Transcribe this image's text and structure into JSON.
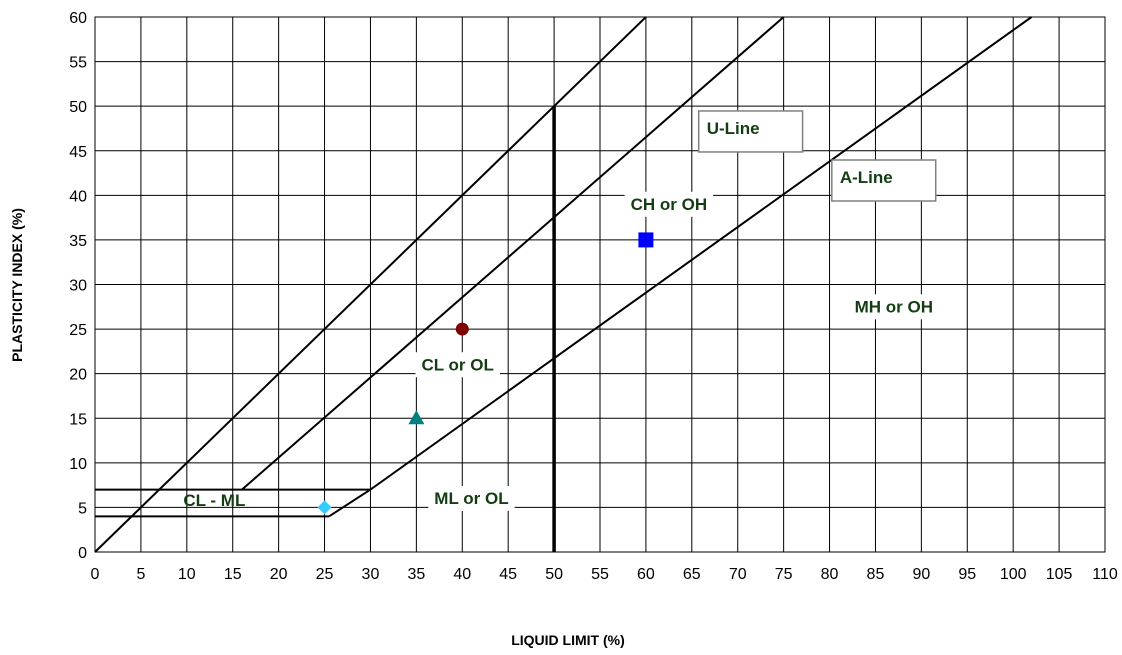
{
  "chart_data": {
    "type": "scatter",
    "title": "",
    "xlabel": "LIQUID LIMIT (%)",
    "ylabel": "PLASTICITY INDEX (%)",
    "xlim": [
      0,
      110
    ],
    "ylim": [
      0,
      60
    ],
    "x_ticks": [
      0,
      5,
      10,
      15,
      20,
      25,
      30,
      35,
      40,
      45,
      50,
      55,
      60,
      65,
      70,
      75,
      80,
      85,
      90,
      95,
      100,
      105,
      110
    ],
    "y_ticks": [
      0,
      5,
      10,
      15,
      20,
      25,
      30,
      35,
      40,
      45,
      50,
      55,
      60
    ],
    "grid": true,
    "lines": [
      {
        "points": [
          [
            0,
            0
          ],
          [
            60,
            60
          ]
        ]
      },
      {
        "points": [
          [
            16,
            7
          ],
          [
            75,
            60
          ]
        ]
      },
      {
        "points": [
          [
            25.5,
            4
          ],
          [
            30,
            7
          ],
          [
            102,
            60
          ]
        ]
      },
      {
        "points": [
          [
            50,
            0
          ],
          [
            50,
            50
          ]
        ]
      },
      {
        "points": [
          [
            0,
            7
          ],
          [
            30,
            7
          ]
        ]
      },
      {
        "points": [
          [
            0,
            4
          ],
          [
            25.5,
            4
          ]
        ]
      }
    ],
    "points": [
      {
        "x": 25,
        "y": 5,
        "marker": "diamond",
        "color": "#33ccff"
      },
      {
        "x": 35,
        "y": 15,
        "marker": "triangle",
        "color": "#008080"
      },
      {
        "x": 40,
        "y": 25,
        "marker": "circle",
        "color": "#800000"
      },
      {
        "x": 60,
        "y": 35,
        "marker": "square",
        "color": "#0000ff"
      }
    ],
    "annotations": [
      {
        "text": "U-Line",
        "x": 69.5,
        "y": 47.5,
        "boxed": true
      },
      {
        "text": "A-Line",
        "x": 84,
        "y": 42,
        "boxed": true
      },
      {
        "text": "CH or OH",
        "x": 62.5,
        "y": 39
      },
      {
        "text": "MH or OH",
        "x": 87,
        "y": 27.5
      },
      {
        "text": "CL or OL",
        "x": 39.5,
        "y": 21
      },
      {
        "text": "ML or OL",
        "x": 41,
        "y": 6
      },
      {
        "text": "CL - ML",
        "x": 13,
        "y": 5.8
      }
    ]
  }
}
